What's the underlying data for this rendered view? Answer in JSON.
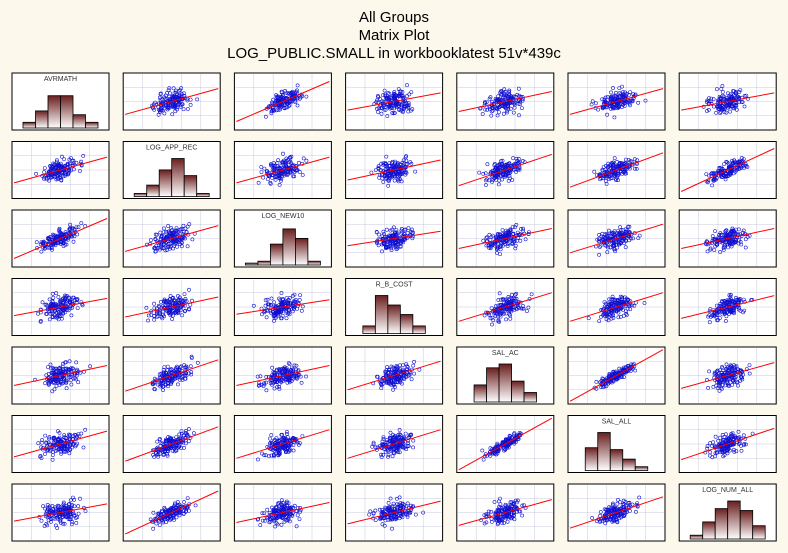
{
  "header": {
    "title1": "All Groups",
    "title2": "Matrix Plot",
    "title3": "LOG_PUBLIC.SMALL in workbooklatest 51v*439c"
  },
  "colors": {
    "background": "#fdf8ec",
    "panel": "#ffffff",
    "grid": "#c8c8dc",
    "point": "#1010d0",
    "fit_line": "#ff0000",
    "bar_top": "#6a1e1e",
    "bar_bottom": "#ffffff"
  },
  "chart_data": {
    "type": "scatter",
    "title": "LOG_PUBLIC.SMALL in workbooklatest 51v*439c",
    "variables": [
      "AVRMATH",
      "LOG_APP_REC",
      "LOG_NEW10",
      "R_B_COST",
      "SAL_AC",
      "SAL_ALL",
      "LOG_NUM_ALL"
    ],
    "n_cases": 439,
    "diagonal": "histogram",
    "off_diagonal": "scatter with linear fit",
    "histograms": [
      [
        0.15,
        0.45,
        0.85,
        0.85,
        0.35,
        0.15
      ],
      [
        0.08,
        0.3,
        0.7,
        1.0,
        0.55,
        0.08
      ],
      [
        0.05,
        0.1,
        0.55,
        0.95,
        0.7,
        0.1
      ],
      [
        0.2,
        1.0,
        0.75,
        0.5,
        0.2
      ],
      [
        0.45,
        0.9,
        1.0,
        0.55,
        0.25
      ],
      [
        0.6,
        1.0,
        0.55,
        0.3,
        0.1
      ],
      [
        0.1,
        0.45,
        0.8,
        1.0,
        0.75,
        0.35
      ]
    ],
    "correlations": [
      [
        1,
        0.45,
        0.7,
        0.3,
        0.35,
        0.45,
        0.3
      ],
      [
        0.45,
        1,
        0.45,
        0.35,
        0.55,
        0.6,
        0.75
      ],
      [
        0.7,
        0.45,
        1,
        0.25,
        0.35,
        0.5,
        0.35
      ],
      [
        0.3,
        0.35,
        0.25,
        1,
        0.5,
        0.5,
        0.4
      ],
      [
        0.35,
        0.55,
        0.35,
        0.5,
        1,
        0.9,
        0.45
      ],
      [
        0.45,
        0.6,
        0.5,
        0.5,
        0.9,
        1,
        0.55
      ],
      [
        0.3,
        0.75,
        0.35,
        0.4,
        0.45,
        0.55,
        1
      ]
    ]
  }
}
